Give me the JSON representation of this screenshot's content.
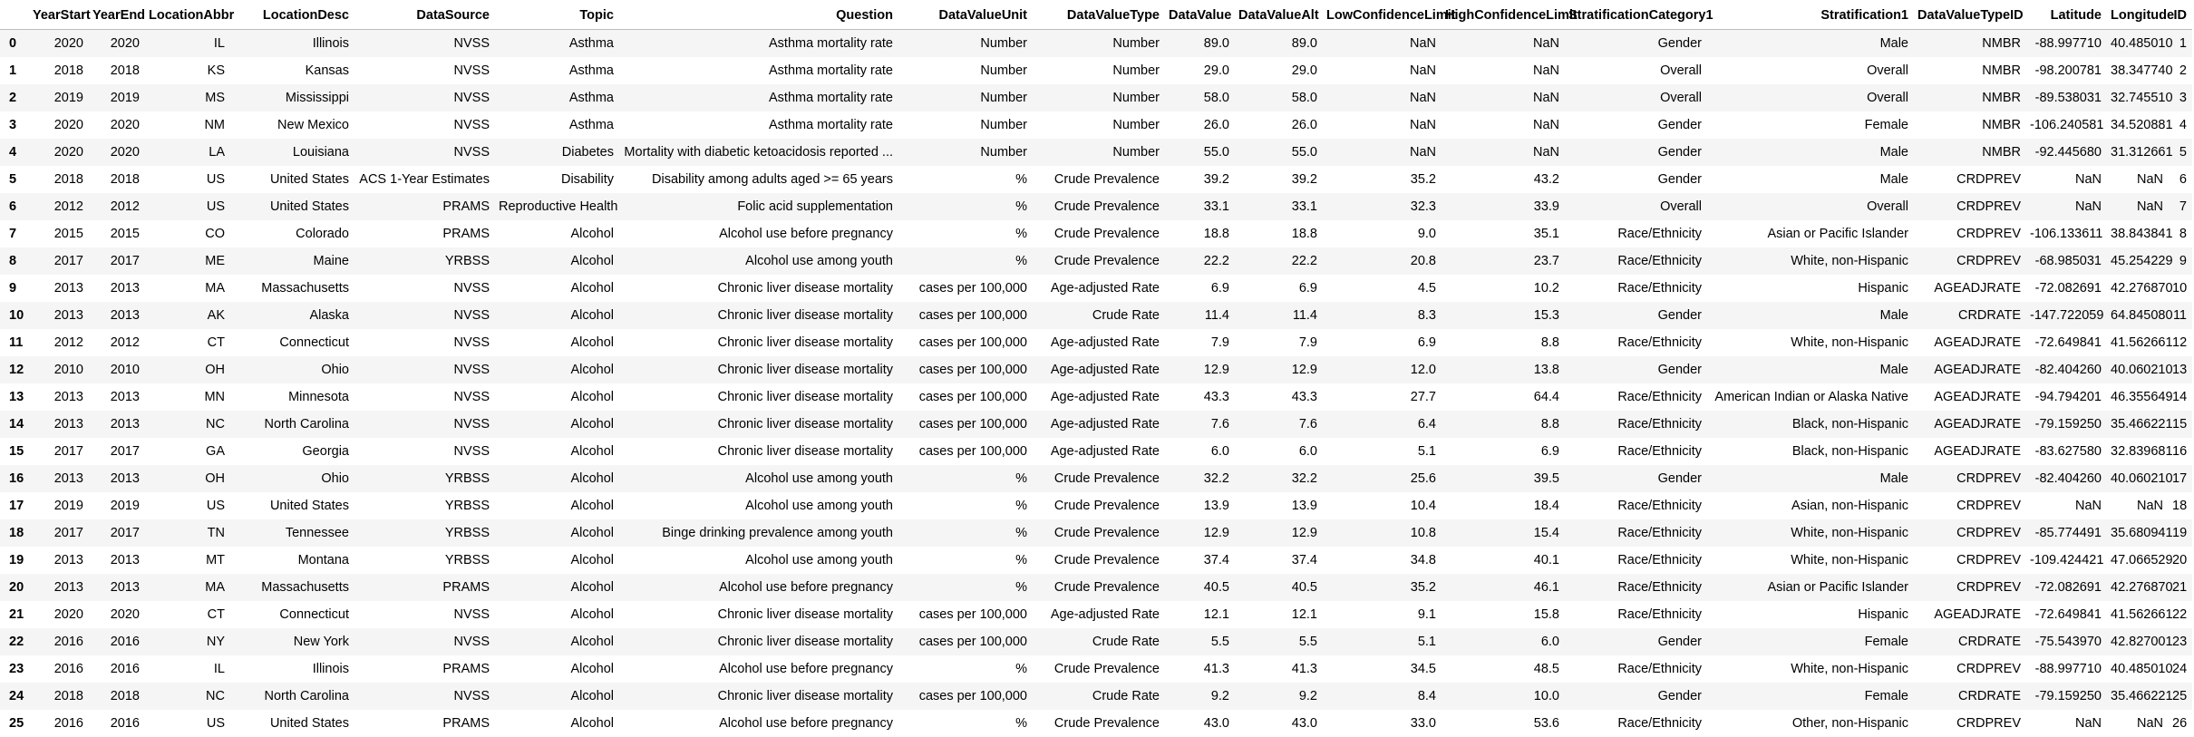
{
  "columns": [
    "",
    "YearStart",
    "YearEnd",
    "LocationAbbr",
    "LocationDesc",
    "DataSource",
    "Topic",
    "Question",
    "DataValueUnit",
    "DataValueType",
    "DataValue",
    "DataValueAlt",
    "LowConfidenceLimit",
    "HighConfidenceLimit",
    "StratificationCategory1",
    "Stratification1",
    "DataValueTypeID",
    "Latitude",
    "Longitude",
    "ID"
  ],
  "rows": [
    [
      "0",
      "2020",
      "2020",
      "IL",
      "Illinois",
      "NVSS",
      "Asthma",
      "Asthma mortality rate",
      "Number",
      "Number",
      "89.0",
      "89.0",
      "NaN",
      "NaN",
      "Gender",
      "Male",
      "NMBR",
      "-88.997710",
      "40.485010",
      "1"
    ],
    [
      "1",
      "2018",
      "2018",
      "KS",
      "Kansas",
      "NVSS",
      "Asthma",
      "Asthma mortality rate",
      "Number",
      "Number",
      "29.0",
      "29.0",
      "NaN",
      "NaN",
      "Overall",
      "Overall",
      "NMBR",
      "-98.200781",
      "38.347740",
      "2"
    ],
    [
      "2",
      "2019",
      "2019",
      "MS",
      "Mississippi",
      "NVSS",
      "Asthma",
      "Asthma mortality rate",
      "Number",
      "Number",
      "58.0",
      "58.0",
      "NaN",
      "NaN",
      "Overall",
      "Overall",
      "NMBR",
      "-89.538031",
      "32.745510",
      "3"
    ],
    [
      "3",
      "2020",
      "2020",
      "NM",
      "New Mexico",
      "NVSS",
      "Asthma",
      "Asthma mortality rate",
      "Number",
      "Number",
      "26.0",
      "26.0",
      "NaN",
      "NaN",
      "Gender",
      "Female",
      "NMBR",
      "-106.240581",
      "34.520881",
      "4"
    ],
    [
      "4",
      "2020",
      "2020",
      "LA",
      "Louisiana",
      "NVSS",
      "Diabetes",
      "Mortality with diabetic ketoacidosis reported ...",
      "Number",
      "Number",
      "55.0",
      "55.0",
      "NaN",
      "NaN",
      "Gender",
      "Male",
      "NMBR",
      "-92.445680",
      "31.312661",
      "5"
    ],
    [
      "5",
      "2018",
      "2018",
      "US",
      "United States",
      "ACS 1-Year Estimates",
      "Disability",
      "Disability among adults aged >= 65 years",
      "%",
      "Crude Prevalence",
      "39.2",
      "39.2",
      "35.2",
      "43.2",
      "Gender",
      "Male",
      "CRDPREV",
      "NaN",
      "NaN",
      "6"
    ],
    [
      "6",
      "2012",
      "2012",
      "US",
      "United States",
      "PRAMS",
      "Reproductive Health",
      "Folic acid supplementation",
      "%",
      "Crude Prevalence",
      "33.1",
      "33.1",
      "32.3",
      "33.9",
      "Overall",
      "Overall",
      "CRDPREV",
      "NaN",
      "NaN",
      "7"
    ],
    [
      "7",
      "2015",
      "2015",
      "CO",
      "Colorado",
      "PRAMS",
      "Alcohol",
      "Alcohol use before pregnancy",
      "%",
      "Crude Prevalence",
      "18.8",
      "18.8",
      "9.0",
      "35.1",
      "Race/Ethnicity",
      "Asian or Pacific Islander",
      "CRDPREV",
      "-106.133611",
      "38.843841",
      "8"
    ],
    [
      "8",
      "2017",
      "2017",
      "ME",
      "Maine",
      "YRBSS",
      "Alcohol",
      "Alcohol use among youth",
      "%",
      "Crude Prevalence",
      "22.2",
      "22.2",
      "20.8",
      "23.7",
      "Race/Ethnicity",
      "White, non-Hispanic",
      "CRDPREV",
      "-68.985031",
      "45.254229",
      "9"
    ],
    [
      "9",
      "2013",
      "2013",
      "MA",
      "Massachusetts",
      "NVSS",
      "Alcohol",
      "Chronic liver disease mortality",
      "cases per 100,000",
      "Age-adjusted Rate",
      "6.9",
      "6.9",
      "4.5",
      "10.2",
      "Race/Ethnicity",
      "Hispanic",
      "AGEADJRATE",
      "-72.082691",
      "42.276870",
      "10"
    ],
    [
      "10",
      "2013",
      "2013",
      "AK",
      "Alaska",
      "NVSS",
      "Alcohol",
      "Chronic liver disease mortality",
      "cases per 100,000",
      "Crude Rate",
      "11.4",
      "11.4",
      "8.3",
      "15.3",
      "Gender",
      "Male",
      "CRDRATE",
      "-147.722059",
      "64.845080",
      "11"
    ],
    [
      "11",
      "2012",
      "2012",
      "CT",
      "Connecticut",
      "NVSS",
      "Alcohol",
      "Chronic liver disease mortality",
      "cases per 100,000",
      "Age-adjusted Rate",
      "7.9",
      "7.9",
      "6.9",
      "8.8",
      "Race/Ethnicity",
      "White, non-Hispanic",
      "AGEADJRATE",
      "-72.649841",
      "41.562661",
      "12"
    ],
    [
      "12",
      "2010",
      "2010",
      "OH",
      "Ohio",
      "NVSS",
      "Alcohol",
      "Chronic liver disease mortality",
      "cases per 100,000",
      "Age-adjusted Rate",
      "12.9",
      "12.9",
      "12.0",
      "13.8",
      "Gender",
      "Male",
      "AGEADJRATE",
      "-82.404260",
      "40.060210",
      "13"
    ],
    [
      "13",
      "2013",
      "2013",
      "MN",
      "Minnesota",
      "NVSS",
      "Alcohol",
      "Chronic liver disease mortality",
      "cases per 100,000",
      "Age-adjusted Rate",
      "43.3",
      "43.3",
      "27.7",
      "64.4",
      "Race/Ethnicity",
      "American Indian or Alaska Native",
      "AGEADJRATE",
      "-94.794201",
      "46.355649",
      "14"
    ],
    [
      "14",
      "2013",
      "2013",
      "NC",
      "North Carolina",
      "NVSS",
      "Alcohol",
      "Chronic liver disease mortality",
      "cases per 100,000",
      "Age-adjusted Rate",
      "7.6",
      "7.6",
      "6.4",
      "8.8",
      "Race/Ethnicity",
      "Black, non-Hispanic",
      "AGEADJRATE",
      "-79.159250",
      "35.466221",
      "15"
    ],
    [
      "15",
      "2017",
      "2017",
      "GA",
      "Georgia",
      "NVSS",
      "Alcohol",
      "Chronic liver disease mortality",
      "cases per 100,000",
      "Age-adjusted Rate",
      "6.0",
      "6.0",
      "5.1",
      "6.9",
      "Race/Ethnicity",
      "Black, non-Hispanic",
      "AGEADJRATE",
      "-83.627580",
      "32.839681",
      "16"
    ],
    [
      "16",
      "2013",
      "2013",
      "OH",
      "Ohio",
      "YRBSS",
      "Alcohol",
      "Alcohol use among youth",
      "%",
      "Crude Prevalence",
      "32.2",
      "32.2",
      "25.6",
      "39.5",
      "Gender",
      "Male",
      "CRDPREV",
      "-82.404260",
      "40.060210",
      "17"
    ],
    [
      "17",
      "2019",
      "2019",
      "US",
      "United States",
      "YRBSS",
      "Alcohol",
      "Alcohol use among youth",
      "%",
      "Crude Prevalence",
      "13.9",
      "13.9",
      "10.4",
      "18.4",
      "Race/Ethnicity",
      "Asian, non-Hispanic",
      "CRDPREV",
      "NaN",
      "NaN",
      "18"
    ],
    [
      "18",
      "2017",
      "2017",
      "TN",
      "Tennessee",
      "YRBSS",
      "Alcohol",
      "Binge drinking prevalence among youth",
      "%",
      "Crude Prevalence",
      "12.9",
      "12.9",
      "10.8",
      "15.4",
      "Race/Ethnicity",
      "White, non-Hispanic",
      "CRDPREV",
      "-85.774491",
      "35.680941",
      "19"
    ],
    [
      "19",
      "2013",
      "2013",
      "MT",
      "Montana",
      "YRBSS",
      "Alcohol",
      "Alcohol use among youth",
      "%",
      "Crude Prevalence",
      "37.4",
      "37.4",
      "34.8",
      "40.1",
      "Race/Ethnicity",
      "White, non-Hispanic",
      "CRDPREV",
      "-109.424421",
      "47.066529",
      "20"
    ],
    [
      "20",
      "2013",
      "2013",
      "MA",
      "Massachusetts",
      "PRAMS",
      "Alcohol",
      "Alcohol use before pregnancy",
      "%",
      "Crude Prevalence",
      "40.5",
      "40.5",
      "35.2",
      "46.1",
      "Race/Ethnicity",
      "Asian or Pacific Islander",
      "CRDPREV",
      "-72.082691",
      "42.276870",
      "21"
    ],
    [
      "21",
      "2020",
      "2020",
      "CT",
      "Connecticut",
      "NVSS",
      "Alcohol",
      "Chronic liver disease mortality",
      "cases per 100,000",
      "Age-adjusted Rate",
      "12.1",
      "12.1",
      "9.1",
      "15.8",
      "Race/Ethnicity",
      "Hispanic",
      "AGEADJRATE",
      "-72.649841",
      "41.562661",
      "22"
    ],
    [
      "22",
      "2016",
      "2016",
      "NY",
      "New York",
      "NVSS",
      "Alcohol",
      "Chronic liver disease mortality",
      "cases per 100,000",
      "Crude Rate",
      "5.5",
      "5.5",
      "5.1",
      "6.0",
      "Gender",
      "Female",
      "CRDRATE",
      "-75.543970",
      "42.827001",
      "23"
    ],
    [
      "23",
      "2016",
      "2016",
      "IL",
      "Illinois",
      "PRAMS",
      "Alcohol",
      "Alcohol use before pregnancy",
      "%",
      "Crude Prevalence",
      "41.3",
      "41.3",
      "34.5",
      "48.5",
      "Race/Ethnicity",
      "White, non-Hispanic",
      "CRDPREV",
      "-88.997710",
      "40.485010",
      "24"
    ],
    [
      "24",
      "2018",
      "2018",
      "NC",
      "North Carolina",
      "NVSS",
      "Alcohol",
      "Chronic liver disease mortality",
      "cases per 100,000",
      "Crude Rate",
      "9.2",
      "9.2",
      "8.4",
      "10.0",
      "Gender",
      "Female",
      "CRDRATE",
      "-79.159250",
      "35.466221",
      "25"
    ],
    [
      "25",
      "2016",
      "2016",
      "US",
      "United States",
      "PRAMS",
      "Alcohol",
      "Alcohol use before pregnancy",
      "%",
      "Crude Prevalence",
      "43.0",
      "43.0",
      "33.0",
      "53.6",
      "Race/Ethnicity",
      "Other, non-Hispanic",
      "CRDPREV",
      "NaN",
      "NaN",
      "26"
    ]
  ]
}
